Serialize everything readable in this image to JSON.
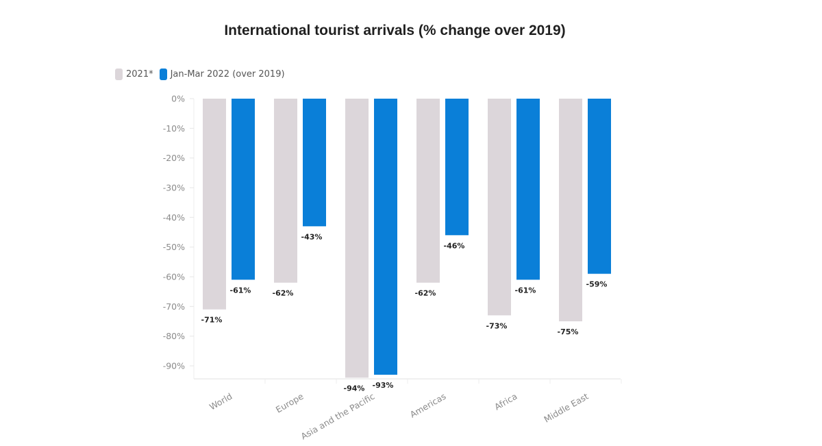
{
  "chart_data": {
    "type": "bar",
    "title": "International tourist arrivals (% change over 2019)",
    "xlabel": "",
    "ylabel": "",
    "ylim": [
      -95,
      0
    ],
    "y_ticks": [
      0,
      -10,
      -20,
      -30,
      -40,
      -50,
      -60,
      -70,
      -80,
      -90
    ],
    "y_tick_labels": [
      "0%",
      "-10%",
      "-20%",
      "-30%",
      "-40%",
      "-50%",
      "-60%",
      "-70%",
      "-80%",
      "-90%"
    ],
    "grid": false,
    "legend_position": "top-left",
    "categories": [
      "World",
      "Europe",
      "Asia and the Pacific",
      "Americas",
      "Africa",
      "Middle East"
    ],
    "series": [
      {
        "name": "2021*",
        "color": "#dcd6da",
        "values": [
          -71,
          -62,
          -94,
          -62,
          -73,
          -75
        ],
        "labels": [
          "-71%",
          "-62%",
          "-94%",
          "-62%",
          "-73%",
          "-75%"
        ]
      },
      {
        "name": "Jan-Mar 2022 (over 2019)",
        "color": "#0a7fd8",
        "values": [
          -61,
          -43,
          -93,
          -46,
          -61,
          -59
        ],
        "labels": [
          "-61%",
          "-43%",
          "-93%",
          "-46%",
          "-61%",
          "-59%"
        ]
      }
    ]
  }
}
